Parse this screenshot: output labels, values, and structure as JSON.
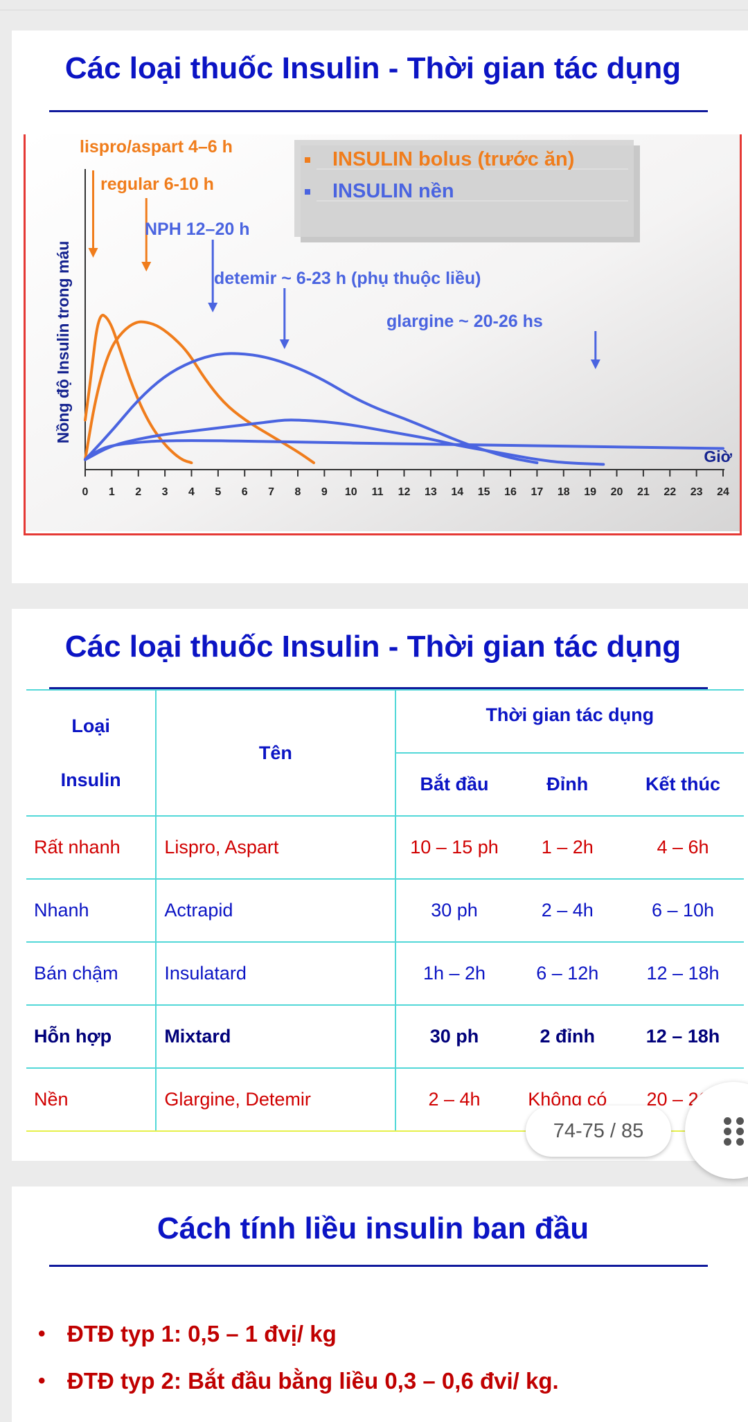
{
  "slide1": {
    "title": "Các loại thuốc Insulin - Thời gian tác dụng"
  },
  "chart_data": {
    "type": "line",
    "ylabel": "Nồng độ Insulin trong máu",
    "xlabel": "Giờ",
    "xlim": [
      0,
      24
    ],
    "x_ticks": [
      "0",
      "1",
      "2",
      "3",
      "4",
      "5",
      "6",
      "7",
      "8",
      "9",
      "10",
      "11",
      "12",
      "13",
      "14",
      "15",
      "16",
      "17",
      "18",
      "19",
      "20",
      "21",
      "22",
      "23",
      "24"
    ],
    "legend": [
      {
        "label": "INSULIN bolus (trước ăn)",
        "color": "#f07d1c"
      },
      {
        "label": "INSULIN nền",
        "color": "#4a64e0"
      }
    ],
    "legend_position": "top-right",
    "annotations": [
      {
        "text": "lispro/aspart 4–6 h",
        "color": "#f07d1c",
        "arrow_x": 0.3
      },
      {
        "text": "regular 6-10 h",
        "color": "#f07d1c",
        "arrow_x": 2.3
      },
      {
        "text": "NPH 12–20 h",
        "color": "#4a64e0",
        "arrow_x": 4.8
      },
      {
        "text": "detemir ~ 6-23 h (phụ thuộc liều)",
        "color": "#4a64e0",
        "arrow_x": 7.5
      },
      {
        "text": "glargine ~ 20-26 hs",
        "color": "#4a64e0",
        "arrow_x": 19.2
      }
    ],
    "series": [
      {
        "name": "lispro/aspart",
        "group": "bolus",
        "color": "#f07d1c",
        "x": [
          0,
          0.2,
          0.5,
          0.9,
          1.3,
          1.8,
          2.4,
          3.0,
          3.6,
          4.0
        ],
        "y": [
          0.3,
          0.55,
          0.98,
          0.94,
          0.75,
          0.5,
          0.28,
          0.14,
          0.05,
          0.03
        ]
      },
      {
        "name": "regular",
        "group": "bolus",
        "color": "#f07d1c",
        "x": [
          0,
          0.4,
          0.9,
          1.4,
          1.9,
          2.3,
          2.8,
          3.4,
          3.9,
          4.5,
          5.2,
          6.0,
          7.0,
          8.0,
          8.6
        ],
        "y": [
          0.05,
          0.45,
          0.74,
          0.86,
          0.92,
          0.92,
          0.89,
          0.81,
          0.72,
          0.56,
          0.41,
          0.3,
          0.2,
          0.1,
          0.03
        ]
      },
      {
        "name": "NPH",
        "group": "basal",
        "color": "#4a64e0",
        "x": [
          0,
          1,
          2,
          3,
          4,
          5,
          6,
          7,
          8,
          9,
          10,
          11,
          12,
          13,
          14,
          15,
          16,
          17
        ],
        "y": [
          0.05,
          0.23,
          0.43,
          0.58,
          0.67,
          0.72,
          0.72,
          0.69,
          0.63,
          0.55,
          0.45,
          0.37,
          0.31,
          0.24,
          0.17,
          0.11,
          0.06,
          0.03
        ]
      },
      {
        "name": "detemir",
        "group": "basal",
        "color": "#4a64e0",
        "x": [
          0,
          1,
          2,
          3,
          4,
          5,
          6,
          7,
          7.5,
          8,
          9,
          10,
          11,
          12,
          13,
          14,
          15,
          16,
          17,
          18,
          19.5
        ],
        "y": [
          0.05,
          0.14,
          0.18,
          0.21,
          0.23,
          0.25,
          0.27,
          0.29,
          0.3,
          0.3,
          0.29,
          0.27,
          0.24,
          0.21,
          0.18,
          0.14,
          0.11,
          0.08,
          0.05,
          0.03,
          0.02
        ]
      },
      {
        "name": "glargine",
        "group": "basal",
        "color": "#4a64e0",
        "x": [
          0,
          0.5,
          1,
          2,
          3,
          5,
          8,
          12,
          16,
          20,
          24
        ],
        "y": [
          0.05,
          0.11,
          0.14,
          0.16,
          0.17,
          0.17,
          0.16,
          0.15,
          0.14,
          0.13,
          0.12
        ]
      }
    ]
  },
  "slide2": {
    "title": "Các loại thuốc Insulin - Thời gian tác dụng",
    "header": {
      "loai_line1": "Loại",
      "loai_line2": "Insulin",
      "ten": "Tên",
      "thoi_gian": "Thời gian tác dụng",
      "bat_dau": "Bắt đầu",
      "dinh": "Đỉnh",
      "ket_thuc": "Kết thúc"
    },
    "rows": [
      [
        "Rất nhanh",
        "Lispro, Aspart",
        "10 – 15 ph",
        "1 – 2h",
        "4 – 6h"
      ],
      [
        "Nhanh",
        "Actrapid",
        "30 ph",
        "2 – 4h",
        "6 – 10h"
      ],
      [
        "Bán chậm",
        "Insulatard",
        "1h – 2h",
        "6 – 12h",
        "12 – 18h"
      ],
      [
        "Hỗn hợp",
        "Mixtard",
        "30 ph",
        "2 đỉnh",
        "12 – 18h"
      ],
      [
        "Nền",
        "Glargine, Detemir",
        "2 – 4h",
        "Không có",
        "20 – 26h"
      ]
    ]
  },
  "pager": {
    "text": "74-75 / 85"
  },
  "slide3": {
    "title": "Cách tính liều insulin ban đầu",
    "bullets": [
      "ĐTĐ typ 1: 0,5 – 1 đvị/ kg",
      "ĐTĐ typ 2: Bắt đầu bằng liều 0,3 – 0,6 đvi/ kg."
    ],
    "bullet_mark": "•"
  }
}
